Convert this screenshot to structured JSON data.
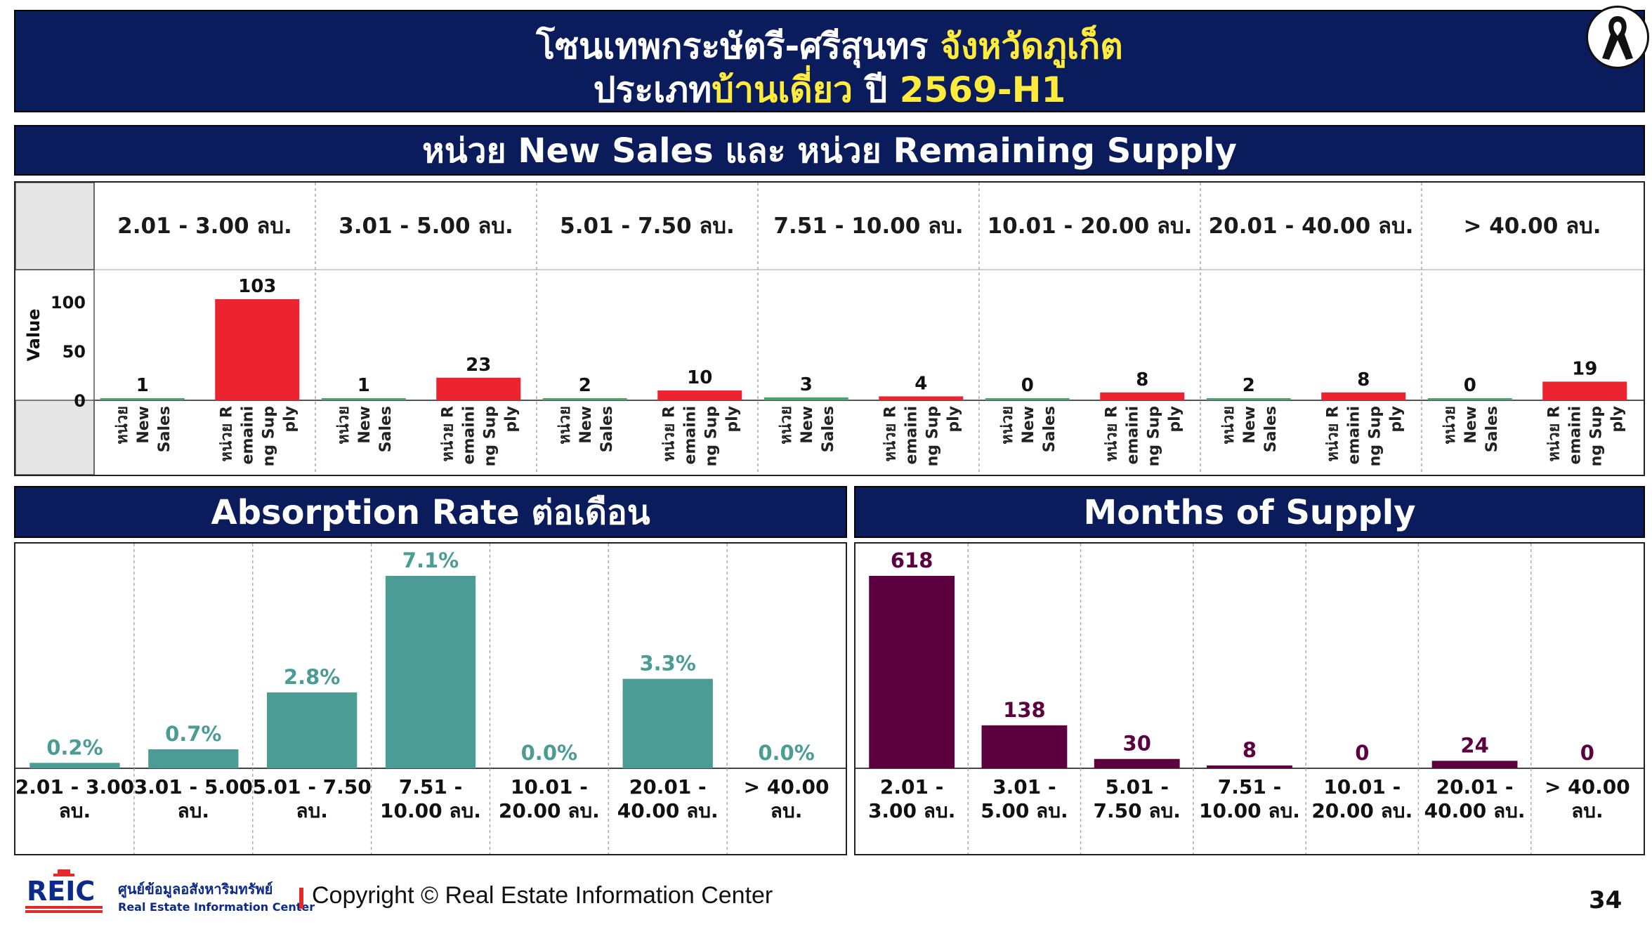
{
  "title": {
    "line1_main": "โซนเทพกระษัตรี-ศรีสุนทร ",
    "line1_accent": "จังหวัดภูเก็ต",
    "line2_main": "ประเภท",
    "line2_accent": "บ้านเดี่ยว",
    "line2_mid": " ปี ",
    "line2_year": "2569-H1"
  },
  "top_panel_header": "หน่วย New Sales และ หน่วย Remaining Supply",
  "absorption_header": "Absorption Rate ต่อเดือน",
  "mos_header": "Months of Supply",
  "colors": {
    "banner": "#0b1c5c",
    "accent": "#ffeb3b",
    "new_sales": "#4aa36c",
    "remaining": "#ee2330",
    "absorption": "#4a9c94",
    "absorption_label": "#4a9c94",
    "mos": "#5c0040",
    "mos_label": "#5c0040"
  },
  "chart_data": [
    {
      "type": "bar",
      "categories": [
        "2.01 - 3.00 ลบ.",
        "3.01 - 5.00 ลบ.",
        "5.01 - 7.50 ลบ.",
        "7.51 - 10.00 ลบ.",
        "10.01 - 20.00 ลบ.",
        "20.01 - 40.00 ลบ.",
        "> 40.00 ลบ."
      ],
      "series": [
        {
          "name": "หน่วย New Sales",
          "values": [
            1,
            1,
            2,
            3,
            0,
            2,
            0
          ]
        },
        {
          "name": "หน่วย Remaining Supply",
          "values": [
            103,
            23,
            10,
            4,
            8,
            8,
            19
          ]
        }
      ],
      "series_label_lines": [
        [
          "หน่วย",
          "New",
          "Sales"
        ],
        [
          "หน่วย R",
          "emaini",
          "ng Sup",
          "ply"
        ]
      ],
      "ylabel": "Value",
      "yticks": [
        0,
        50,
        100
      ],
      "ylim": [
        0,
        103
      ]
    },
    {
      "type": "bar",
      "categories": [
        [
          "2.01 - 3.00",
          "ลบ."
        ],
        [
          "3.01 - 5.00",
          "ลบ."
        ],
        [
          "5.01 - 7.50",
          "ลบ."
        ],
        [
          "7.51 -",
          "10.00 ลบ."
        ],
        [
          "10.01 -",
          "20.00 ลบ."
        ],
        [
          "20.01 -",
          "40.00 ลบ."
        ],
        [
          "> 40.00",
          "ลบ."
        ]
      ],
      "values": [
        0.2,
        0.7,
        2.8,
        7.1,
        0.0,
        3.3,
        0.0
      ],
      "labels": [
        "0.2%",
        "0.7%",
        "2.8%",
        "7.1%",
        "0.0%",
        "3.3%",
        "0.0%"
      ],
      "ylim": [
        0,
        7.1
      ]
    },
    {
      "type": "bar",
      "categories": [
        [
          "2.01 -",
          "3.00 ลบ."
        ],
        [
          "3.01 -",
          "5.00 ลบ."
        ],
        [
          "5.01 -",
          "7.50 ลบ."
        ],
        [
          "7.51 -",
          "10.00 ลบ."
        ],
        [
          "10.01 -",
          "20.00 ลบ."
        ],
        [
          "20.01 -",
          "40.00 ลบ."
        ],
        [
          "> 40.00",
          "ลบ."
        ]
      ],
      "values": [
        618,
        138,
        30,
        8,
        0,
        24,
        0
      ],
      "labels": [
        "618",
        "138",
        "30",
        "8",
        "0",
        "24",
        "0"
      ],
      "ylim": [
        0,
        618
      ]
    }
  ],
  "footer": {
    "logo_text": "REIC",
    "logo_th": "ศูนย์ข้อมูลอสังหาริมทรัพย์",
    "logo_en": "Real Estate Information Center",
    "copyright": "Copyright © Real Estate Information Center",
    "page_number": "34"
  }
}
